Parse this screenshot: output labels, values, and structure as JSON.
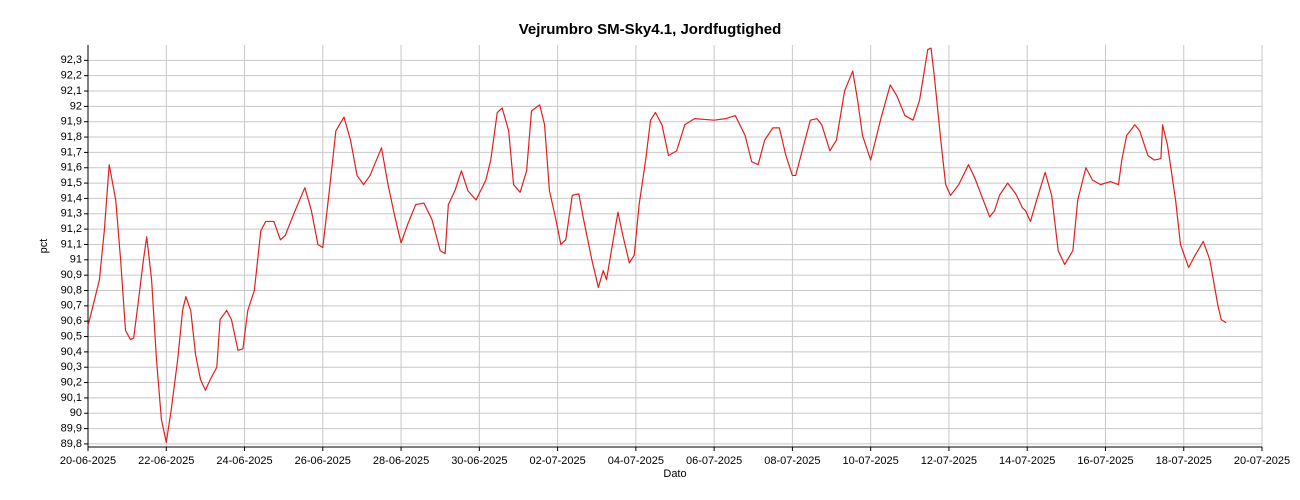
{
  "chart_data": {
    "type": "line",
    "title": "Vejrumbro SM-Sky4.1, Jordfugtighed",
    "x_label": "Dato",
    "y_label": "pct",
    "color": "#e0201f",
    "grid": true,
    "xlim": [
      "2025-06-20T00:00",
      "2025-07-20T00:00"
    ],
    "ylim": [
      89.78,
      92.4
    ],
    "xticks": [
      {
        "value": "2025-06-20T00:00",
        "label": "20-06-2025"
      },
      {
        "value": "2025-06-22T00:00",
        "label": "22-06-2025"
      },
      {
        "value": "2025-06-24T00:00",
        "label": "24-06-2025"
      },
      {
        "value": "2025-06-26T00:00",
        "label": "26-06-2025"
      },
      {
        "value": "2025-06-28T00:00",
        "label": "28-06-2025"
      },
      {
        "value": "2025-06-30T00:00",
        "label": "30-06-2025"
      },
      {
        "value": "2025-07-02T00:00",
        "label": "02-07-2025"
      },
      {
        "value": "2025-07-04T00:00",
        "label": "04-07-2025"
      },
      {
        "value": "2025-07-06T00:00",
        "label": "06-07-2025"
      },
      {
        "value": "2025-07-08T00:00",
        "label": "08-07-2025"
      },
      {
        "value": "2025-07-10T00:00",
        "label": "10-07-2025"
      },
      {
        "value": "2025-07-12T00:00",
        "label": "12-07-2025"
      },
      {
        "value": "2025-07-14T00:00",
        "label": "14-07-2025"
      },
      {
        "value": "2025-07-16T00:00",
        "label": "16-07-2025"
      },
      {
        "value": "2025-07-18T00:00",
        "label": "18-07-2025"
      },
      {
        "value": "2025-07-20T00:00",
        "label": "20-07-2025"
      }
    ],
    "yticks": [
      {
        "value": 89.8,
        "label": "89,8"
      },
      {
        "value": 89.9,
        "label": "89,9"
      },
      90,
      {
        "value": 90.1,
        "label": "90,1"
      },
      {
        "value": 90.2,
        "label": "90,2"
      },
      {
        "value": 90.3,
        "label": "90,3"
      },
      {
        "value": 90.4,
        "label": "90,4"
      },
      {
        "value": 90.5,
        "label": "90,5"
      },
      {
        "value": 90.6,
        "label": "90,6"
      },
      {
        "value": 90.7,
        "label": "90,7"
      },
      {
        "value": 90.8,
        "label": "90,8"
      },
      {
        "value": 90.9,
        "label": "90,9"
      },
      91,
      {
        "value": 91.1,
        "label": "91,1"
      },
      {
        "value": 91.2,
        "label": "91,2"
      },
      {
        "value": 91.3,
        "label": "91,3"
      },
      {
        "value": 91.4,
        "label": "91,4"
      },
      {
        "value": 91.5,
        "label": "91,5"
      },
      {
        "value": 91.6,
        "label": "91,6"
      },
      {
        "value": 91.7,
        "label": "91,7"
      },
      {
        "value": 91.8,
        "label": "91,8"
      },
      {
        "value": 91.9,
        "label": "91,9"
      },
      92,
      {
        "value": 92.1,
        "label": "92,1"
      },
      {
        "value": 92.2,
        "label": "92,2"
      },
      {
        "value": 92.3,
        "label": "92,3"
      }
    ],
    "x": [
      "2025-06-20T00:00",
      "2025-06-20T04:00",
      "2025-06-20T07:00",
      "2025-06-20T10:00",
      "2025-06-20T13:00",
      "2025-06-20T17:00",
      "2025-06-20T20:00",
      "2025-06-20T23:00",
      "2025-06-21T02:00",
      "2025-06-21T04:00",
      "2025-06-21T07:00",
      "2025-06-21T10:00",
      "2025-06-21T12:00",
      "2025-06-21T15:00",
      "2025-06-21T18:00",
      "2025-06-21T21:00",
      "2025-06-22T00:00",
      "2025-06-22T03:00",
      "2025-06-22T07:00",
      "2025-06-22T10:00",
      "2025-06-22T12:00",
      "2025-06-22T15:00",
      "2025-06-22T18:00",
      "2025-06-22T21:00",
      "2025-06-23T00:00",
      "2025-06-23T03:00",
      "2025-06-23T07:00",
      "2025-06-23T09:00",
      "2025-06-23T13:00",
      "2025-06-23T16:00",
      "2025-06-23T20:00",
      "2025-06-23T23:00",
      "2025-06-24T02:00",
      "2025-06-24T06:00",
      "2025-06-24T10:00",
      "2025-06-24T13:00",
      "2025-06-24T18:00",
      "2025-06-24T22:00",
      "2025-06-25T01:00",
      "2025-06-25T07:00",
      "2025-06-25T13:00",
      "2025-06-25T17:00",
      "2025-06-25T21:00",
      "2025-06-26T00:00",
      "2025-06-26T04:00",
      "2025-06-26T08:00",
      "2025-06-26T13:00",
      "2025-06-26T17:00",
      "2025-06-26T21:00",
      "2025-06-27T01:00",
      "2025-06-27T05:00",
      "2025-06-27T12:00",
      "2025-06-27T16:00",
      "2025-06-27T20:00",
      "2025-06-28T00:00",
      "2025-06-28T04:00",
      "2025-06-28T09:00",
      "2025-06-28T14:00",
      "2025-06-28T19:00",
      "2025-06-29T00:00",
      "2025-06-29T03:00",
      "2025-06-29T05:00",
      "2025-06-29T09:00",
      "2025-06-29T13:00",
      "2025-06-29T17:00",
      "2025-06-29T22:00",
      "2025-06-30T04:00",
      "2025-06-30T07:00",
      "2025-06-30T11:00",
      "2025-06-30T14:00",
      "2025-06-30T18:00",
      "2025-06-30T21:00",
      "2025-07-01T01:00",
      "2025-07-01T05:00",
      "2025-07-01T08:00",
      "2025-07-01T13:00",
      "2025-07-01T16:00",
      "2025-07-01T19:00",
      "2025-07-01T23:00",
      "2025-07-02T02:00",
      "2025-07-02T05:00",
      "2025-07-02T09:00",
      "2025-07-02T13:00",
      "2025-07-02T16:00",
      "2025-07-02T21:00",
      "2025-07-03T01:00",
      "2025-07-03T04:00",
      "2025-07-03T06:00",
      "2025-07-03T09:00",
      "2025-07-03T13:00",
      "2025-07-03T16:00",
      "2025-07-03T20:00",
      "2025-07-03T23:00",
      "2025-07-04T02:00",
      "2025-07-04T06:00",
      "2025-07-04T09:00",
      "2025-07-04T12:00",
      "2025-07-04T16:00",
      "2025-07-04T20:00",
      "2025-07-05T01:00",
      "2025-07-05T06:00",
      "2025-07-05T12:00",
      "2025-07-06T00:00",
      "2025-07-06T07:00",
      "2025-07-06T13:00",
      "2025-07-06T19:00",
      "2025-07-06T23:00",
      "2025-07-07T03:00",
      "2025-07-07T07:00",
      "2025-07-07T12:00",
      "2025-07-07T16:00",
      "2025-07-07T20:00",
      "2025-07-08T00:00",
      "2025-07-08T02:00",
      "2025-07-08T06:00",
      "2025-07-08T11:00",
      "2025-07-08T15:00",
      "2025-07-08T18:00",
      "2025-07-08T23:00",
      "2025-07-09T03:00",
      "2025-07-09T08:00",
      "2025-07-09T13:00",
      "2025-07-09T16:00",
      "2025-07-09T19:00",
      "2025-07-10T00:00",
      "2025-07-10T06:00",
      "2025-07-10T12:00",
      "2025-07-10T16:00",
      "2025-07-10T21:00",
      "2025-07-11T02:00",
      "2025-07-11T06:00",
      "2025-07-11T11:00",
      "2025-07-11T13:00",
      "2025-07-11T15:00",
      "2025-07-11T19:00",
      "2025-07-11T22:00",
      "2025-07-12T01:00",
      "2025-07-12T06:00",
      "2025-07-12T12:00",
      "2025-07-12T16:00",
      "2025-07-12T21:00",
      "2025-07-13T01:00",
      "2025-07-13T04:00",
      "2025-07-13T07:00",
      "2025-07-13T12:00",
      "2025-07-13T17:00",
      "2025-07-13T21:00",
      "2025-07-13T23:00",
      "2025-07-14T02:00",
      "2025-07-14T05:00",
      "2025-07-14T11:00",
      "2025-07-14T15:00",
      "2025-07-14T19:00",
      "2025-07-14T23:00",
      "2025-07-15T04:00",
      "2025-07-15T07:00",
      "2025-07-15T12:00",
      "2025-07-15T16:00",
      "2025-07-15T21:00",
      "2025-07-16T03:00",
      "2025-07-16T08:00",
      "2025-07-16T10:00",
      "2025-07-16T13:00",
      "2025-07-16T18:00",
      "2025-07-16T21:00",
      "2025-07-17T02:00",
      "2025-07-17T06:00",
      "2025-07-17T10:00",
      "2025-07-17T11:00",
      "2025-07-17T14:00",
      "2025-07-17T19:00",
      "2025-07-17T22:00",
      "2025-07-18T03:00",
      "2025-07-18T07:00",
      "2025-07-18T12:00",
      "2025-07-18T16:00",
      "2025-07-18T21:00",
      "2025-07-18T23:00",
      "2025-07-19T02:00"
    ],
    "values": [
      90.57,
      90.74,
      90.87,
      91.19,
      91.62,
      91.39,
      91.0,
      90.54,
      90.48,
      90.49,
      90.74,
      91.0,
      91.15,
      90.87,
      90.35,
      89.96,
      89.81,
      90.02,
      90.35,
      90.67,
      90.76,
      90.67,
      90.38,
      90.22,
      90.15,
      90.22,
      90.3,
      90.61,
      90.67,
      90.61,
      90.41,
      90.42,
      90.67,
      90.8,
      91.19,
      91.25,
      91.25,
      91.13,
      91.16,
      91.32,
      91.47,
      91.32,
      91.1,
      91.08,
      91.45,
      91.84,
      91.93,
      91.78,
      91.55,
      91.49,
      91.55,
      91.73,
      91.49,
      91.29,
      91.11,
      91.23,
      91.36,
      91.37,
      91.26,
      91.06,
      91.04,
      91.36,
      91.45,
      91.58,
      91.45,
      91.39,
      91.52,
      91.65,
      91.96,
      91.99,
      91.84,
      91.49,
      91.44,
      91.58,
      91.97,
      92.01,
      91.88,
      91.45,
      91.26,
      91.1,
      91.13,
      91.42,
      91.43,
      91.26,
      91.0,
      90.82,
      90.93,
      90.87,
      91.06,
      91.31,
      91.16,
      90.98,
      91.03,
      91.36,
      91.65,
      91.91,
      91.96,
      91.88,
      91.68,
      91.71,
      91.88,
      91.92,
      91.91,
      91.92,
      91.94,
      91.81,
      91.64,
      91.62,
      91.78,
      91.86,
      91.86,
      91.68,
      91.55,
      91.55,
      91.71,
      91.91,
      91.92,
      91.88,
      91.71,
      91.78,
      92.1,
      92.23,
      92.04,
      91.81,
      91.65,
      91.91,
      92.14,
      92.07,
      91.94,
      91.91,
      92.04,
      92.37,
      92.38,
      92.2,
      91.78,
      91.49,
      91.42,
      91.49,
      91.62,
      91.53,
      91.39,
      91.28,
      91.32,
      91.42,
      91.5,
      91.43,
      91.34,
      91.32,
      91.25,
      91.36,
      91.57,
      91.42,
      91.06,
      90.97,
      91.06,
      91.39,
      91.6,
      91.52,
      91.49,
      91.51,
      91.49,
      91.65,
      91.81,
      91.88,
      91.84,
      91.68,
      91.65,
      91.66,
      91.88,
      91.75,
      91.39,
      91.1,
      90.95,
      91.03,
      91.12,
      91.0,
      90.7,
      90.61,
      90.59
    ]
  }
}
